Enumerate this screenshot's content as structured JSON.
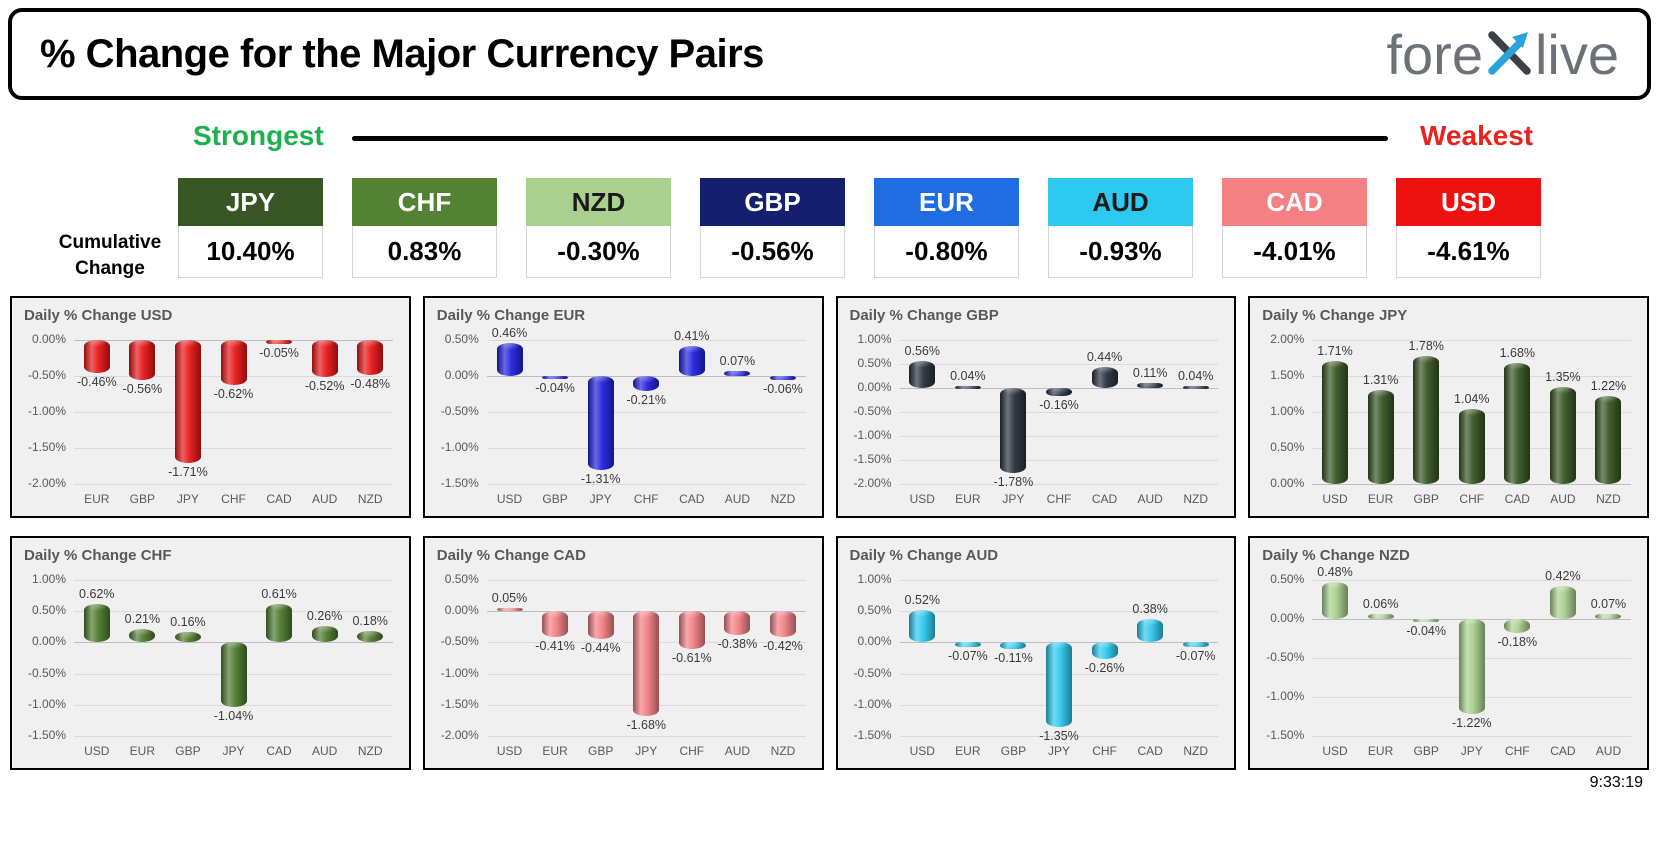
{
  "header": {
    "title": "% Change for the Major Currency Pairs",
    "logo_fore": "fore",
    "logo_live": "live",
    "logo_blue": "#2aa3dc",
    "logo_gray": "#6d7278"
  },
  "scale": {
    "strongest": "Strongest",
    "weakest": "Weakest"
  },
  "cumulative": {
    "label_line1": "Cumulative",
    "label_line2": "Change",
    "items": [
      {
        "code": "JPY",
        "value": "10.40%",
        "bg": "#375623",
        "fg": "#ffffff"
      },
      {
        "code": "CHF",
        "value": "0.83%",
        "bg": "#548235",
        "fg": "#ffffff"
      },
      {
        "code": "NZD",
        "value": "-0.30%",
        "bg": "#a9d08e",
        "fg": "#1a1a1a"
      },
      {
        "code": "GBP",
        "value": "-0.56%",
        "bg": "#14206e",
        "fg": "#ffffff"
      },
      {
        "code": "EUR",
        "value": "-0.80%",
        "bg": "#1f6de0",
        "fg": "#ffffff"
      },
      {
        "code": "AUD",
        "value": "-0.93%",
        "bg": "#2ec9ee",
        "fg": "#1a1a1a"
      },
      {
        "code": "CAD",
        "value": "-4.01%",
        "bg": "#f58084",
        "fg": "#ffffff"
      },
      {
        "code": "USD",
        "value": "-4.61%",
        "bg": "#ee1111",
        "fg": "#ffffff"
      }
    ]
  },
  "timestamp": "9:33:19",
  "chart_data": [
    {
      "type": "bar",
      "title": "Daily % Change USD",
      "color": "#e81717",
      "categories": [
        "EUR",
        "GBP",
        "JPY",
        "CHF",
        "CAD",
        "AUD",
        "NZD"
      ],
      "values": [
        -0.46,
        -0.56,
        -1.71,
        -0.62,
        -0.05,
        -0.52,
        -0.48
      ],
      "ymax": 0.0,
      "ymin": -2.0,
      "ystep": 0.5,
      "grid": true,
      "legend": "none"
    },
    {
      "type": "bar",
      "title": "Daily % Change EUR",
      "color": "#2222dd",
      "categories": [
        "USD",
        "GBP",
        "JPY",
        "CHF",
        "CAD",
        "AUD",
        "NZD"
      ],
      "values": [
        0.46,
        -0.04,
        -1.31,
        -0.21,
        0.41,
        0.07,
        -0.06
      ],
      "ymax": 0.5,
      "ymin": -1.5,
      "ystep": 0.5,
      "grid": true,
      "legend": "none"
    },
    {
      "type": "bar",
      "title": "Daily % Change GBP",
      "color": "#29323f",
      "categories": [
        "USD",
        "EUR",
        "JPY",
        "CHF",
        "CAD",
        "AUD",
        "NZD"
      ],
      "values": [
        0.56,
        0.04,
        -1.78,
        -0.16,
        0.44,
        0.11,
        0.04
      ],
      "ymax": 1.0,
      "ymin": -2.0,
      "ystep": 0.5,
      "grid": true,
      "legend": "none"
    },
    {
      "type": "bar",
      "title": "Daily % Change JPY",
      "color": "#375623",
      "categories": [
        "USD",
        "EUR",
        "GBP",
        "CHF",
        "CAD",
        "AUD",
        "NZD"
      ],
      "values": [
        1.71,
        1.31,
        1.78,
        1.04,
        1.68,
        1.35,
        1.22
      ],
      "ymax": 2.0,
      "ymin": 0.0,
      "ystep": 0.5,
      "grid": true,
      "legend": "none"
    },
    {
      "type": "bar",
      "title": "Daily % Change CHF",
      "color": "#4e7a2e",
      "categories": [
        "USD",
        "EUR",
        "GBP",
        "JPY",
        "CAD",
        "AUD",
        "NZD"
      ],
      "values": [
        0.62,
        0.21,
        0.16,
        -1.04,
        0.61,
        0.26,
        0.18
      ],
      "ymax": 1.0,
      "ymin": -1.5,
      "ystep": 0.5,
      "grid": true,
      "legend": "none"
    },
    {
      "type": "bar",
      "title": "Daily % Change CAD",
      "color": "#f28084",
      "categories": [
        "USD",
        "EUR",
        "GBP",
        "JPY",
        "CHF",
        "AUD",
        "NZD"
      ],
      "values": [
        0.05,
        -0.41,
        -0.44,
        -1.68,
        -0.61,
        -0.38,
        -0.42
      ],
      "ymax": 0.5,
      "ymin": -2.0,
      "ystep": 0.5,
      "grid": true,
      "legend": "none"
    },
    {
      "type": "bar",
      "title": "Daily % Change AUD",
      "color": "#2ec9ee",
      "categories": [
        "USD",
        "EUR",
        "GBP",
        "JPY",
        "CHF",
        "CAD",
        "NZD"
      ],
      "values": [
        0.52,
        -0.07,
        -0.11,
        -1.35,
        -0.26,
        0.38,
        -0.07
      ],
      "ymax": 1.0,
      "ymin": -1.5,
      "ystep": 0.5,
      "grid": true,
      "legend": "none"
    },
    {
      "type": "bar",
      "title": "Daily % Change NZD",
      "color": "#a9d08e",
      "categories": [
        "USD",
        "EUR",
        "GBP",
        "JPY",
        "CHF",
        "CAD",
        "AUD"
      ],
      "values": [
        0.48,
        0.06,
        -0.04,
        -1.22,
        -0.18,
        0.42,
        0.07
      ],
      "ymax": 0.5,
      "ymin": -1.5,
      "ystep": 0.5,
      "grid": true,
      "legend": "none"
    }
  ]
}
